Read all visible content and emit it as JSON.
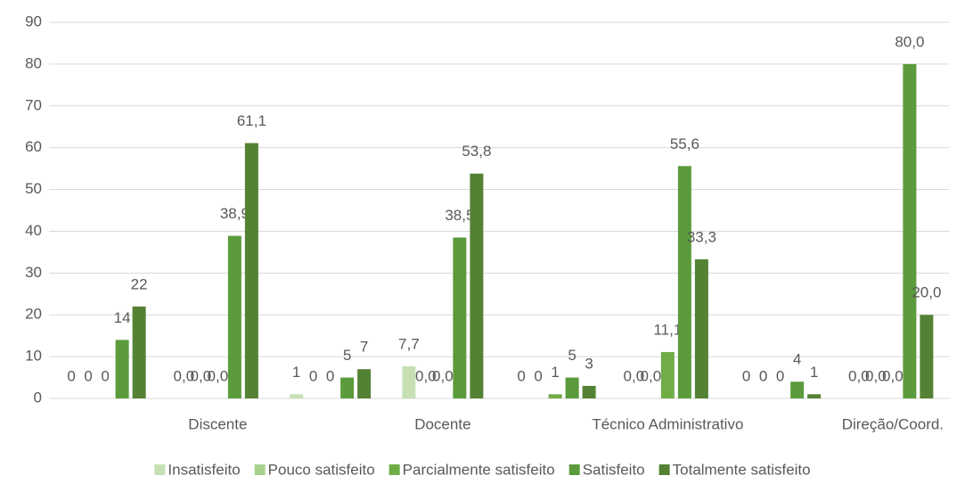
{
  "chart_data": {
    "type": "bar",
    "categories": [
      null,
      "Discente",
      null,
      "Docente",
      null,
      "Técnico Administrativo",
      null,
      "Direção/Coord."
    ],
    "series": [
      {
        "name": "Insatisfeito",
        "color": "#c6e0b4",
        "values": [
          0,
          0,
          1,
          7.7,
          0,
          0,
          0,
          0
        ],
        "value_labels": [
          "0",
          "0,0",
          "1",
          "7,7",
          "0",
          "0,0",
          "0",
          "0,0"
        ]
      },
      {
        "name": "Pouco satisfeito",
        "color": "#a9d18e",
        "values": [
          0,
          0,
          0,
          0,
          0,
          0,
          0,
          0
        ],
        "value_labels": [
          "0",
          "0,0",
          "0",
          "0,0",
          "0",
          "0,0",
          "0",
          "0,0"
        ]
      },
      {
        "name": "Parcialmente satisfeito",
        "color": "#70ad47",
        "values": [
          0,
          0,
          0,
          0,
          1,
          11.1,
          0,
          0
        ],
        "value_labels": [
          "0",
          "0,0",
          "0",
          "0,0",
          "1",
          "11,1",
          "0",
          "0,0"
        ]
      },
      {
        "name": "Satisfeito",
        "color": "#5b9b3b",
        "values": [
          14,
          38.9,
          5,
          38.5,
          5,
          55.6,
          4,
          80
        ],
        "value_labels": [
          "14",
          "38,9",
          "5",
          "38,5",
          "5",
          "55,6",
          "4",
          "80,0"
        ]
      },
      {
        "name": "Totalmente satisfeito",
        "color": "#548235",
        "values": [
          22,
          61.1,
          7,
          53.8,
          3,
          33.3,
          1,
          20
        ],
        "value_labels": [
          "22",
          "61,1",
          "7",
          "53,8",
          "3",
          "33,3",
          "1",
          "20,0"
        ]
      }
    ],
    "ylim": [
      0,
      90
    ],
    "yticks": [
      0,
      10,
      20,
      30,
      40,
      50,
      60,
      70,
      80,
      90
    ],
    "grid": true,
    "legend": "bottom"
  }
}
